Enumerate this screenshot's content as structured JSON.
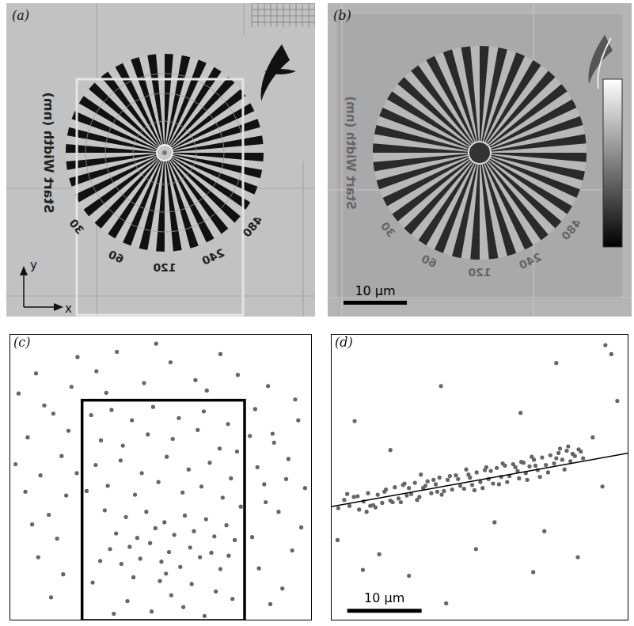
{
  "figure": {
    "a": {
      "label": "(a)",
      "target": {
        "title": "Start Width (nm)",
        "widths": [
          30,
          60,
          120,
          240,
          480
        ]
      },
      "axes": {
        "x": "x",
        "y": "y"
      }
    },
    "b": {
      "label": "(b)",
      "scale_bar": "10 µm"
    }
  },
  "chart_data": [
    {
      "label": "(c)",
      "type": "scatter",
      "x": [
        1.2,
        3.5,
        5.8,
        2.4,
        6.9,
        4.1,
        8.2,
        7.5,
        3.0,
        0.8,
        5.2,
        7.8,
        2.1,
        6.3,
        8.9,
        4.6,
        9.0,
        3.8,
        7.1,
        5.5,
        11.5,
        14.2,
        17.8,
        21.3,
        24.6,
        27.9,
        12.8,
        19.4,
        26.1,
        30.2,
        32.5,
        34.8,
        36.9,
        33.7,
        38.2,
        35.6,
        32.1,
        37.4,
        34.2,
        39.1,
        33.0,
        36.1,
        35.0,
        38.6,
        32.8,
        34.5,
        37.8,
        33.9,
        36.6,
        31.8,
        10.8,
        13.5,
        16.2,
        19.0,
        22.4,
        25.7,
        28.9,
        12.1,
        15.0,
        18.3,
        21.6,
        24.9,
        27.8,
        30.1,
        11.4,
        14.7,
        17.5,
        20.8,
        23.7,
        26.5,
        29.3,
        10.2,
        13.0,
        16.6,
        19.7,
        22.9,
        25.4,
        28.2,
        30.6,
        12.6,
        15.4,
        18.1,
        20.5,
        23.2,
        26.0,
        28.7,
        14.1,
        16.9,
        19.3,
        21.8,
        24.4,
        27.1,
        29.8,
        13.3,
        15.9,
        18.6,
        21.1,
        23.9,
        26.7,
        29.0,
        12.0,
        14.8,
        17.3,
        20.1,
        22.6,
        25.2,
        27.9,
        16.4,
        19.9,
        24.1,
        11.0,
        21.4,
        27.3,
        15.6,
        23.0,
        18.8,
        29.5,
        13.8,
        25.8,
        20.7
      ],
      "values": [
        30.5,
        33.2,
        27.8,
        24.6,
        22.1,
        19.5,
        31.4,
        16.8,
        12.9,
        21.0,
        14.2,
        25.5,
        17.3,
        11.0,
        19.8,
        28.9,
        35.4,
        8.5,
        6.2,
        3.1,
        33.5,
        36.1,
        31.9,
        34.7,
        32.3,
        35.8,
        30.6,
        37.2,
        30.9,
        33.0,
        28.4,
        25.1,
        21.7,
        18.3,
        26.9,
        14.6,
        11.2,
        9.4,
        31.5,
        17.8,
        7.0,
        4.3,
        23.9,
        12.5,
        20.6,
        2.2,
        29.7,
        15.9,
        19.0,
        24.8,
        27.6,
        28.3,
        26.9,
        28.7,
        27.2,
        28.1,
        26.4,
        24.2,
        23.5,
        25.0,
        24.4,
        25.6,
        23.1,
        22.7,
        20.9,
        21.5,
        19.8,
        22.0,
        20.3,
        21.2,
        19.1,
        17.4,
        18.1,
        16.9,
        18.6,
        17.2,
        18.0,
        16.5,
        15.3,
        14.8,
        13.9,
        14.6,
        13.2,
        14.1,
        13.6,
        12.8,
        11.7,
        11.1,
        12.4,
        11.5,
        12.0,
        11.3,
        10.8,
        9.6,
        9.9,
        10.4,
        9.2,
        9.8,
        9.1,
        8.7,
        8.0,
        7.6,
        8.3,
        7.9,
        7.2,
        8.5,
        6.9,
        5.8,
        5.3,
        4.9,
        5.1,
        3.4,
        3.9,
        2.6,
        1.8,
        1.2,
        2.9,
        0.9,
        0.6,
        6.3
      ],
      "xlim": [
        0,
        40
      ],
      "ylim": [
        0,
        38.5
      ],
      "tick_labels": false,
      "grid": false,
      "color": "#666666",
      "marker": "circle",
      "region": {
        "x": [
          9.6,
          31.1
        ],
        "y": [
          0,
          29.6
        ]
      }
    },
    {
      "label": "(d)",
      "type": "scatter",
      "x": [
        1.0,
        1.8,
        2.5,
        3.1,
        3.8,
        4.4,
        5.0,
        5.7,
        6.3,
        6.9,
        7.4,
        8.0,
        8.6,
        9.1,
        9.7,
        10.2,
        10.8,
        11.3,
        11.9,
        12.4,
        13.0,
        13.5,
        14.1,
        14.6,
        15.2,
        15.7,
        16.3,
        16.8,
        17.4,
        17.9,
        18.5,
        19.0,
        19.6,
        20.1,
        20.7,
        21.2,
        21.8,
        22.3,
        22.9,
        23.4,
        24.0,
        24.5,
        25.1,
        25.6,
        26.2,
        26.7,
        27.3,
        27.8,
        28.4,
        28.9,
        29.5,
        30.0,
        30.6,
        31.1,
        31.7,
        32.2,
        32.8,
        33.3,
        33.9,
        31.4,
        3.6,
        6.0,
        8.3,
        10.5,
        12.7,
        14.9,
        17.1,
        19.3,
        21.5,
        23.7,
        25.9,
        28.1,
        30.3,
        32.5,
        2.2,
        4.8,
        7.2,
        9.4,
        11.6,
        13.8,
        16.0,
        18.2,
        20.4,
        22.6,
        24.8,
        27.0,
        29.2,
        31.9,
        33.6,
        26.4,
        5.3,
        9.9,
        14.3,
        18.7,
        23.1,
        27.5,
        30.8,
        12.1,
        20.9,
        25.3,
        0.9,
        3.2,
        6.5,
        10.5,
        14.8,
        19.5,
        22.0,
        25.5,
        28.7,
        35.2,
        36.9,
        37.7,
        38.5,
        30.3,
        33.2,
        8.0,
        15.5,
        4.3,
        27.2,
        36.5
      ],
      "values": [
        15.1,
        16.2,
        15.4,
        16.6,
        14.9,
        16.0,
        17.1,
        15.5,
        16.9,
        15.8,
        17.6,
        16.1,
        17.9,
        16.4,
        18.2,
        16.8,
        17.0,
        18.5,
        16.6,
        17.8,
        18.7,
        17.1,
        18.3,
        19.2,
        17.4,
        18.9,
        17.6,
        19.5,
        18.1,
        17.7,
        19.6,
        18.2,
        19.9,
        18.6,
        20.2,
        19.0,
        18.4,
        20.5,
        19.3,
        20.8,
        19.4,
        21.0,
        20.1,
        21.3,
        19.8,
        20.7,
        21.6,
        20.2,
        21.9,
        20.9,
        22.2,
        21.1,
        22.5,
        21.6,
        22.8,
        21.4,
        22.1,
        23.0,
        21.8,
        20.3,
        16.7,
        15.2,
        15.9,
        17.8,
        18.1,
        16.9,
        19.0,
        17.5,
        20.1,
        18.6,
        21.2,
        19.3,
        21.8,
        22.4,
        17.0,
        14.6,
        17.3,
        15.9,
        16.2,
        18.9,
        19.4,
        20.3,
        17.8,
        18.3,
        20.6,
        22.0,
        19.9,
        23.4,
        22.7,
        18.9,
        15.4,
        18.4,
        17.3,
        19.2,
        21.1,
        20.8,
        23.1,
        19.6,
        20.6,
        19.1,
        10.8,
        26.8,
        8.9,
        6.0,
        31.5,
        9.6,
        13.2,
        27.9,
        12.0,
        24.6,
        37.0,
        35.8,
        29.5,
        34.6,
        8.5,
        22.9,
        2.3,
        6.8,
        6.5,
        18.0
      ],
      "xlim": [
        0,
        40
      ],
      "ylim": [
        0,
        38.5
      ],
      "tick_labels": false,
      "grid": false,
      "color": "#666666",
      "marker": "circle",
      "fit_line": {
        "x": [
          0,
          40
        ],
        "values": [
          15.3,
          22.5
        ]
      },
      "scale_bar": {
        "label": "10 µm",
        "length": 10
      }
    }
  ]
}
